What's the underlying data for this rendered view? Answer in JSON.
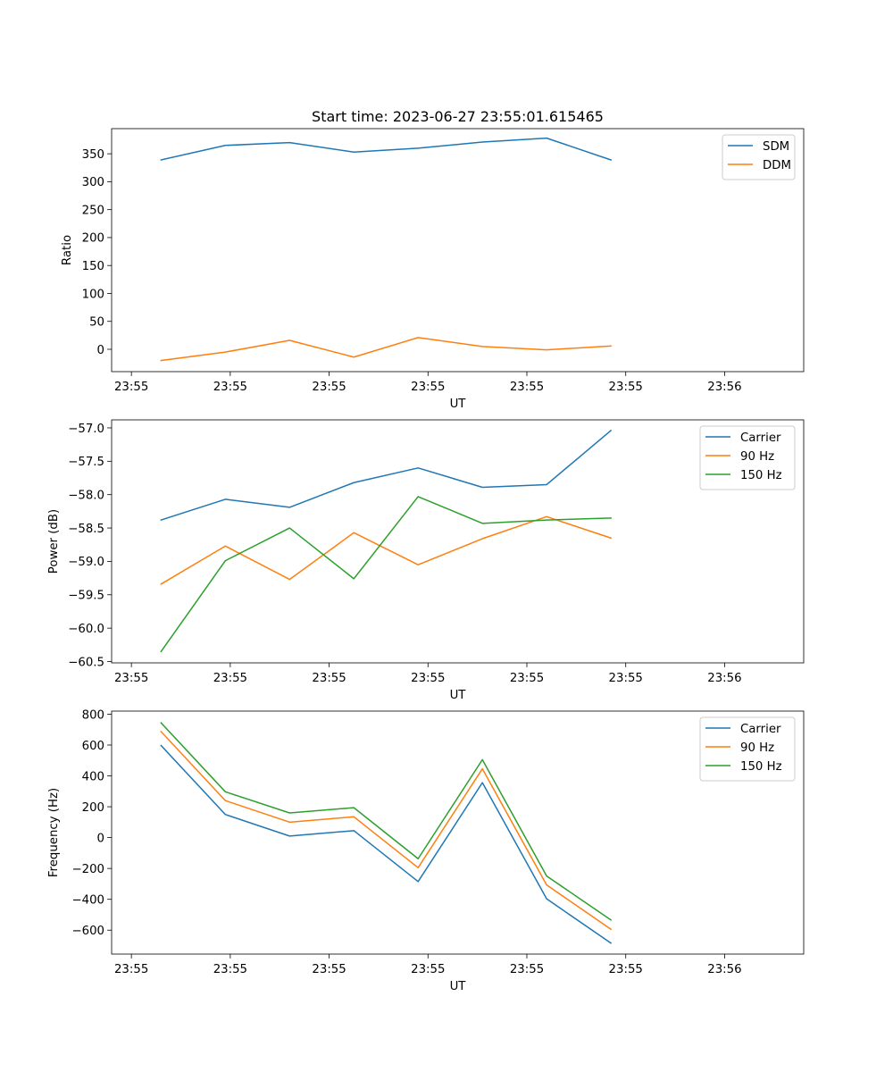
{
  "title": "Start time: 2023-06-27 23:55:01.615465",
  "colors": {
    "blue": "#1f77b4",
    "orange": "#ff7f0e",
    "green": "#2ca02c"
  },
  "chart_data": [
    {
      "type": "line",
      "xlabel": "UT",
      "ylabel": "Ratio",
      "x_tick_labels": [
        "23:55",
        "23:55",
        "23:55",
        "23:55",
        "23:55",
        "23:55",
        "23:56"
      ],
      "y_ticks": [
        0,
        50,
        100,
        150,
        200,
        250,
        300,
        350
      ],
      "y_tick_labels": [
        "0",
        "50",
        "100",
        "150",
        "200",
        "250",
        "300",
        "350"
      ],
      "xlim": [
        -0.25,
        3.25
      ],
      "x_ticks": [
        -0.15,
        0.35,
        0.85,
        1.35,
        1.85,
        2.35,
        2.85
      ],
      "ylim": [
        -40,
        395
      ],
      "legend": "upper right",
      "x": [
        0,
        0.325,
        0.65,
        0.975,
        1.3,
        1.625,
        1.95,
        2.275
      ],
      "series": [
        {
          "name": "SDM",
          "color": "#1f77b4",
          "values": [
            339,
            365,
            370,
            353,
            360,
            371,
            378,
            339
          ]
        },
        {
          "name": "DDM",
          "color": "#ff7f0e",
          "values": [
            -20,
            -5,
            16,
            -14,
            21,
            5,
            -1,
            6
          ]
        }
      ]
    },
    {
      "type": "line",
      "xlabel": "UT",
      "ylabel": "Power (dB)",
      "x_tick_labels": [
        "23:55",
        "23:55",
        "23:55",
        "23:55",
        "23:55",
        "23:55",
        "23:56"
      ],
      "y_ticks": [
        -60.5,
        -60.0,
        -59.5,
        -59.0,
        -58.5,
        -58.0,
        -57.5,
        -57.0
      ],
      "y_tick_labels": [
        "−60.5",
        "−60.0",
        "−59.5",
        "−59.0",
        "−58.5",
        "−58.0",
        "−57.5",
        "−57.0"
      ],
      "xlim": [
        -0.25,
        3.25
      ],
      "x_ticks": [
        -0.15,
        0.35,
        0.85,
        1.35,
        1.85,
        2.35,
        2.85
      ],
      "ylim": [
        -60.52,
        -56.88
      ],
      "legend": "upper right",
      "x": [
        0,
        0.325,
        0.65,
        0.975,
        1.3,
        1.625,
        1.95,
        2.275
      ],
      "series": [
        {
          "name": "Carrier",
          "color": "#1f77b4",
          "values": [
            -58.38,
            -58.07,
            -58.19,
            -57.82,
            -57.6,
            -57.89,
            -57.85,
            -57.04
          ]
        },
        {
          "name": "90 Hz",
          "color": "#ff7f0e",
          "values": [
            -59.34,
            -58.77,
            -59.27,
            -58.57,
            -59.05,
            -58.66,
            -58.33,
            -58.65
          ]
        },
        {
          "name": "150 Hz",
          "color": "#2ca02c",
          "values": [
            -60.35,
            -58.99,
            -58.5,
            -59.26,
            -58.03,
            -58.43,
            -58.38,
            -58.35
          ]
        }
      ]
    },
    {
      "type": "line",
      "xlabel": "UT",
      "ylabel": "Frequency (Hz)",
      "x_tick_labels": [
        "23:55",
        "23:55",
        "23:55",
        "23:55",
        "23:55",
        "23:55",
        "23:56"
      ],
      "y_ticks": [
        -600,
        -400,
        -200,
        0,
        200,
        400,
        600,
        800
      ],
      "y_tick_labels": [
        "−600",
        "−400",
        "−200",
        "0",
        "200",
        "400",
        "600",
        "800"
      ],
      "xlim": [
        -0.25,
        3.25
      ],
      "x_ticks": [
        -0.15,
        0.35,
        0.85,
        1.35,
        1.85,
        2.35,
        2.85
      ],
      "ylim": [
        -755,
        820
      ],
      "legend": "upper right",
      "x": [
        0,
        0.325,
        0.65,
        0.975,
        1.3,
        1.625,
        1.95,
        2.275
      ],
      "series": [
        {
          "name": "Carrier",
          "color": "#1f77b4",
          "values": [
            597,
            150,
            10,
            45,
            -285,
            356,
            -397,
            -684
          ]
        },
        {
          "name": "90 Hz",
          "color": "#ff7f0e",
          "values": [
            687,
            240,
            100,
            135,
            -195,
            446,
            -307,
            -594
          ]
        },
        {
          "name": "150 Hz",
          "color": "#2ca02c",
          "values": [
            744,
            297,
            160,
            194,
            -137,
            505,
            -249,
            -534
          ]
        }
      ]
    }
  ]
}
